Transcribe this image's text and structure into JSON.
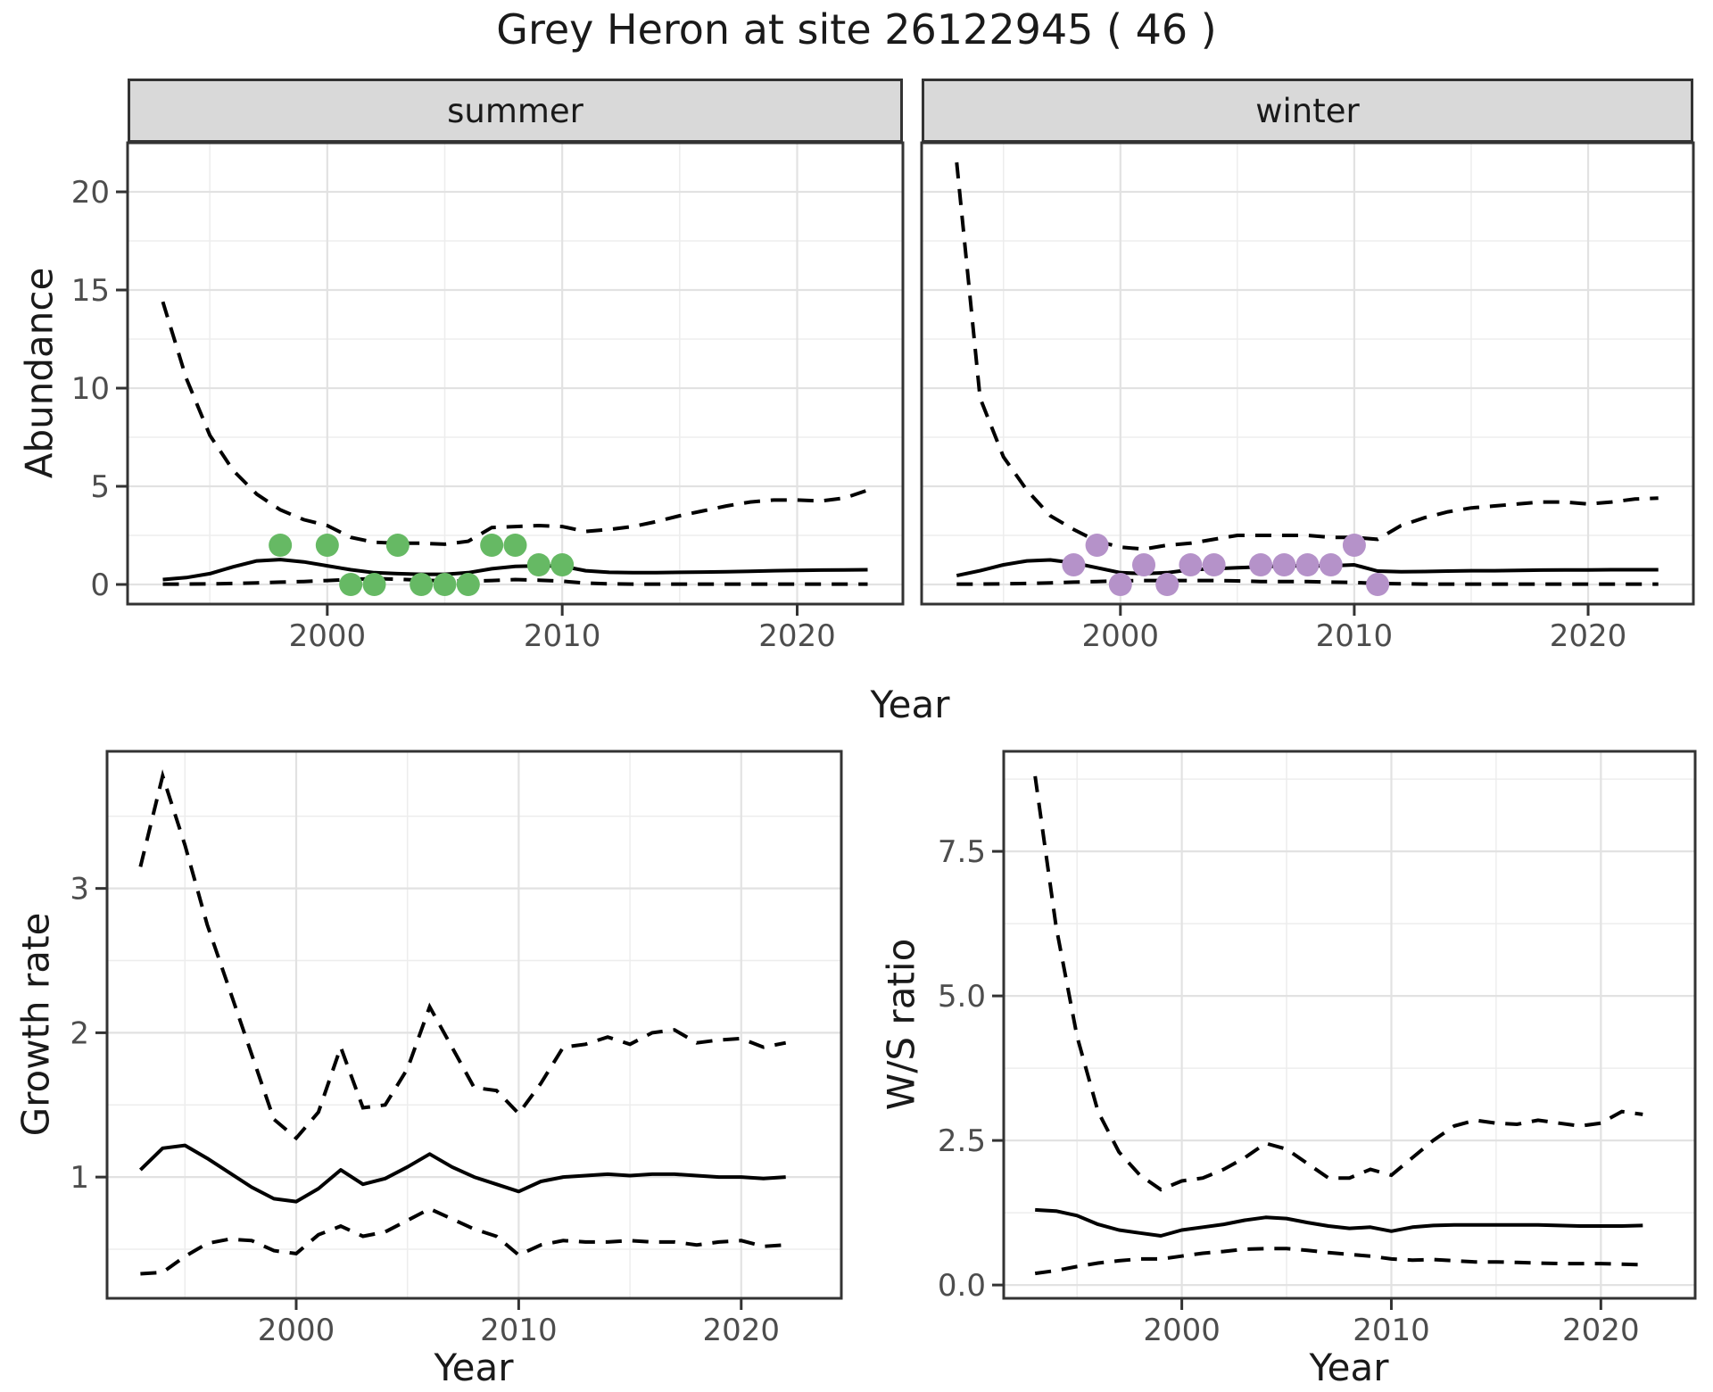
{
  "page": {
    "title": "Grey Heron at site 26122945 ( 46 )"
  },
  "colors": {
    "summer_point": "#66b964",
    "winter_point": "#b592c9",
    "line": "#000000",
    "strip_bg": "#d9d9d9",
    "grid_major": "#e2e2e2",
    "grid_minor": "#ededed",
    "axis_text": "#4d4d4d",
    "title_text": "#1a1a1a",
    "panel_border": "#333333"
  },
  "chart_data": [
    {
      "id": "abundance",
      "type": "line",
      "xlabel": "Year",
      "ylabel": "Abundance",
      "xlim": [
        1991.5,
        2024.5
      ],
      "ylim": [
        -1.0,
        22.5
      ],
      "xticks": [
        2000,
        2010,
        2020
      ],
      "xtick_labels": [
        "2000",
        "2010",
        "2020"
      ],
      "minor_x": [
        1995,
        2005,
        2015
      ],
      "yticks": [
        0,
        5,
        10,
        15,
        20
      ],
      "ytick_labels": [
        "0",
        "5",
        "10",
        "15",
        "20"
      ],
      "minor_y": [
        2.5,
        7.5,
        12.5,
        17.5
      ],
      "grid": true,
      "legend": "none",
      "facets": [
        {
          "label": "summer",
          "point_color": "summer_point",
          "x": [
            1993,
            1994,
            1995,
            1996,
            1997,
            1998,
            1999,
            2000,
            2001,
            2002,
            2003,
            2004,
            2005,
            2006,
            2007,
            2008,
            2009,
            2010,
            2011,
            2012,
            2013,
            2014,
            2015,
            2016,
            2017,
            2018,
            2019,
            2020,
            2021,
            2022,
            2023
          ],
          "upper_ci": [
            14.4,
            10.5,
            7.6,
            5.8,
            4.6,
            3.8,
            3.3,
            3.0,
            2.4,
            2.15,
            2.1,
            2.1,
            2.05,
            2.2,
            2.9,
            2.95,
            3.0,
            2.95,
            2.7,
            2.8,
            2.95,
            3.2,
            3.5,
            3.75,
            4.0,
            4.2,
            4.3,
            4.3,
            4.25,
            4.4,
            4.8
          ],
          "mean": [
            0.25,
            0.35,
            0.55,
            0.9,
            1.2,
            1.27,
            1.15,
            0.95,
            0.75,
            0.6,
            0.55,
            0.52,
            0.52,
            0.6,
            0.8,
            0.92,
            0.95,
            0.93,
            0.7,
            0.62,
            0.6,
            0.6,
            0.62,
            0.63,
            0.65,
            0.67,
            0.7,
            0.72,
            0.73,
            0.74,
            0.75
          ],
          "lower_ci": [
            0.02,
            0.02,
            0.03,
            0.05,
            0.08,
            0.12,
            0.15,
            0.2,
            0.25,
            0.3,
            0.27,
            0.22,
            0.18,
            0.17,
            0.2,
            0.25,
            0.22,
            0.17,
            0.07,
            0.03,
            0.02,
            0.02,
            0.02,
            0.02,
            0.02,
            0.02,
            0.02,
            0.02,
            0.02,
            0.02,
            0.02
          ],
          "observations": [
            [
              1998,
              2
            ],
            [
              2000,
              2
            ],
            [
              2001,
              0
            ],
            [
              2002,
              0
            ],
            [
              2003,
              2
            ],
            [
              2004,
              0
            ],
            [
              2005,
              0
            ],
            [
              2006,
              0
            ],
            [
              2007,
              2
            ],
            [
              2008,
              2
            ],
            [
              2009,
              1
            ],
            [
              2010,
              1
            ]
          ]
        },
        {
          "label": "winter",
          "point_color": "winter_point",
          "x": [
            1993,
            1994,
            1995,
            1996,
            1997,
            1998,
            1999,
            2000,
            2001,
            2002,
            2003,
            2004,
            2005,
            2006,
            2007,
            2008,
            2009,
            2010,
            2011,
            2012,
            2013,
            2014,
            2015,
            2016,
            2017,
            2018,
            2019,
            2020,
            2021,
            2022,
            2023
          ],
          "upper_ci": [
            21.5,
            9.5,
            6.5,
            4.8,
            3.5,
            2.8,
            2.2,
            1.9,
            1.8,
            2.0,
            2.1,
            2.3,
            2.5,
            2.5,
            2.5,
            2.5,
            2.4,
            2.4,
            2.3,
            3.0,
            3.4,
            3.7,
            3.9,
            4.0,
            4.1,
            4.2,
            4.2,
            4.1,
            4.2,
            4.35,
            4.4
          ],
          "mean": [
            0.45,
            0.7,
            1.0,
            1.2,
            1.25,
            1.1,
            0.85,
            0.6,
            0.55,
            0.6,
            0.75,
            0.8,
            0.85,
            0.9,
            0.95,
            0.95,
            0.95,
            1.0,
            0.68,
            0.65,
            0.66,
            0.68,
            0.7,
            0.7,
            0.72,
            0.73,
            0.74,
            0.74,
            0.75,
            0.75,
            0.75
          ],
          "lower_ci": [
            0.02,
            0.02,
            0.03,
            0.05,
            0.08,
            0.12,
            0.15,
            0.18,
            0.2,
            0.2,
            0.2,
            0.2,
            0.18,
            0.15,
            0.15,
            0.15,
            0.12,
            0.1,
            0.05,
            0.03,
            0.02,
            0.02,
            0.02,
            0.02,
            0.02,
            0.02,
            0.02,
            0.02,
            0.02,
            0.02,
            0.02
          ],
          "observations": [
            [
              1998,
              1
            ],
            [
              1999,
              2
            ],
            [
              2000,
              0
            ],
            [
              2001,
              1
            ],
            [
              2002,
              0
            ],
            [
              2003,
              1
            ],
            [
              2004,
              1
            ],
            [
              2006,
              1
            ],
            [
              2007,
              1
            ],
            [
              2008,
              1
            ],
            [
              2009,
              1
            ],
            [
              2010,
              2
            ],
            [
              2011,
              0
            ]
          ]
        }
      ]
    },
    {
      "id": "growth_rate",
      "type": "line",
      "xlabel": "Year",
      "ylabel": "Growth rate",
      "xlim": [
        1991.5,
        2024.5
      ],
      "ylim": [
        0.16,
        3.95
      ],
      "xticks": [
        2000,
        2010,
        2020
      ],
      "xtick_labels": [
        "2000",
        "2010",
        "2020"
      ],
      "minor_x": [
        1995,
        2005,
        2015
      ],
      "yticks": [
        1,
        2,
        3
      ],
      "ytick_labels": [
        "1",
        "2",
        "3"
      ],
      "minor_y": [
        0.5,
        1.5,
        2.5,
        3.5
      ],
      "grid": true,
      "legend": "none",
      "facets": [
        {
          "label": "",
          "point_color": null,
          "x": [
            1993,
            1994,
            1995,
            1996,
            1997,
            1998,
            1999,
            2000,
            2001,
            2002,
            2003,
            2004,
            2005,
            2006,
            2007,
            2008,
            2009,
            2010,
            2011,
            2012,
            2013,
            2014,
            2015,
            2016,
            2017,
            2018,
            2019,
            2020,
            2021,
            2022
          ],
          "upper_ci": [
            3.15,
            3.78,
            3.3,
            2.75,
            2.3,
            1.85,
            1.4,
            1.27,
            1.45,
            1.9,
            1.48,
            1.5,
            1.75,
            2.18,
            1.9,
            1.62,
            1.6,
            1.44,
            1.65,
            1.9,
            1.92,
            1.97,
            1.92,
            2.0,
            2.02,
            1.93,
            1.95,
            1.96,
            1.9,
            1.93
          ],
          "mean": [
            1.05,
            1.2,
            1.22,
            1.13,
            1.03,
            0.93,
            0.85,
            0.83,
            0.92,
            1.05,
            0.95,
            0.99,
            1.07,
            1.16,
            1.07,
            1.0,
            0.95,
            0.9,
            0.97,
            1.0,
            1.01,
            1.02,
            1.01,
            1.02,
            1.02,
            1.01,
            1.0,
            1.0,
            0.99,
            1.0
          ],
          "lower_ci": [
            0.33,
            0.34,
            0.45,
            0.54,
            0.57,
            0.56,
            0.49,
            0.47,
            0.6,
            0.66,
            0.59,
            0.62,
            0.7,
            0.78,
            0.71,
            0.64,
            0.59,
            0.46,
            0.53,
            0.56,
            0.55,
            0.55,
            0.56,
            0.55,
            0.55,
            0.53,
            0.55,
            0.56,
            0.52,
            0.53
          ],
          "observations": []
        }
      ]
    },
    {
      "id": "ws_ratio",
      "type": "line",
      "xlabel": "Year",
      "ylabel": "W/S ratio",
      "xlim": [
        1991.5,
        2024.5
      ],
      "ylim": [
        -0.23,
        9.23
      ],
      "xticks": [
        2000,
        2010,
        2020
      ],
      "xtick_labels": [
        "2000",
        "2010",
        "2020"
      ],
      "minor_x": [
        1995,
        2005,
        2015
      ],
      "yticks": [
        0,
        2.5,
        5,
        7.5
      ],
      "ytick_labels": [
        "0.0",
        "2.5",
        "5.0",
        "7.5"
      ],
      "minor_y": [
        1.25,
        3.75,
        6.25,
        8.75
      ],
      "grid": true,
      "legend": "none",
      "facets": [
        {
          "label": "",
          "point_color": null,
          "x": [
            1993,
            1994,
            1995,
            1996,
            1997,
            1998,
            1999,
            2000,
            2001,
            2002,
            2003,
            2004,
            2005,
            2006,
            2007,
            2008,
            2009,
            2010,
            2011,
            2012,
            2013,
            2014,
            2015,
            2016,
            2017,
            2018,
            2019,
            2020,
            2021,
            2022
          ],
          "upper_ci": [
            8.8,
            6.2,
            4.3,
            3.0,
            2.3,
            1.9,
            1.65,
            1.8,
            1.85,
            2.0,
            2.2,
            2.45,
            2.35,
            2.1,
            1.85,
            1.85,
            2.0,
            1.9,
            2.2,
            2.5,
            2.75,
            2.85,
            2.8,
            2.78,
            2.85,
            2.8,
            2.75,
            2.8,
            3.0,
            2.95
          ],
          "mean": [
            1.3,
            1.28,
            1.2,
            1.05,
            0.95,
            0.9,
            0.85,
            0.95,
            1.0,
            1.05,
            1.12,
            1.17,
            1.15,
            1.08,
            1.02,
            0.98,
            1.0,
            0.93,
            1.0,
            1.03,
            1.04,
            1.04,
            1.04,
            1.04,
            1.04,
            1.03,
            1.02,
            1.02,
            1.02,
            1.03
          ],
          "lower_ci": [
            0.2,
            0.25,
            0.32,
            0.38,
            0.42,
            0.45,
            0.45,
            0.5,
            0.55,
            0.58,
            0.62,
            0.63,
            0.63,
            0.6,
            0.56,
            0.53,
            0.5,
            0.45,
            0.43,
            0.44,
            0.42,
            0.4,
            0.4,
            0.39,
            0.38,
            0.37,
            0.37,
            0.37,
            0.36,
            0.35
          ],
          "observations": []
        }
      ]
    }
  ]
}
